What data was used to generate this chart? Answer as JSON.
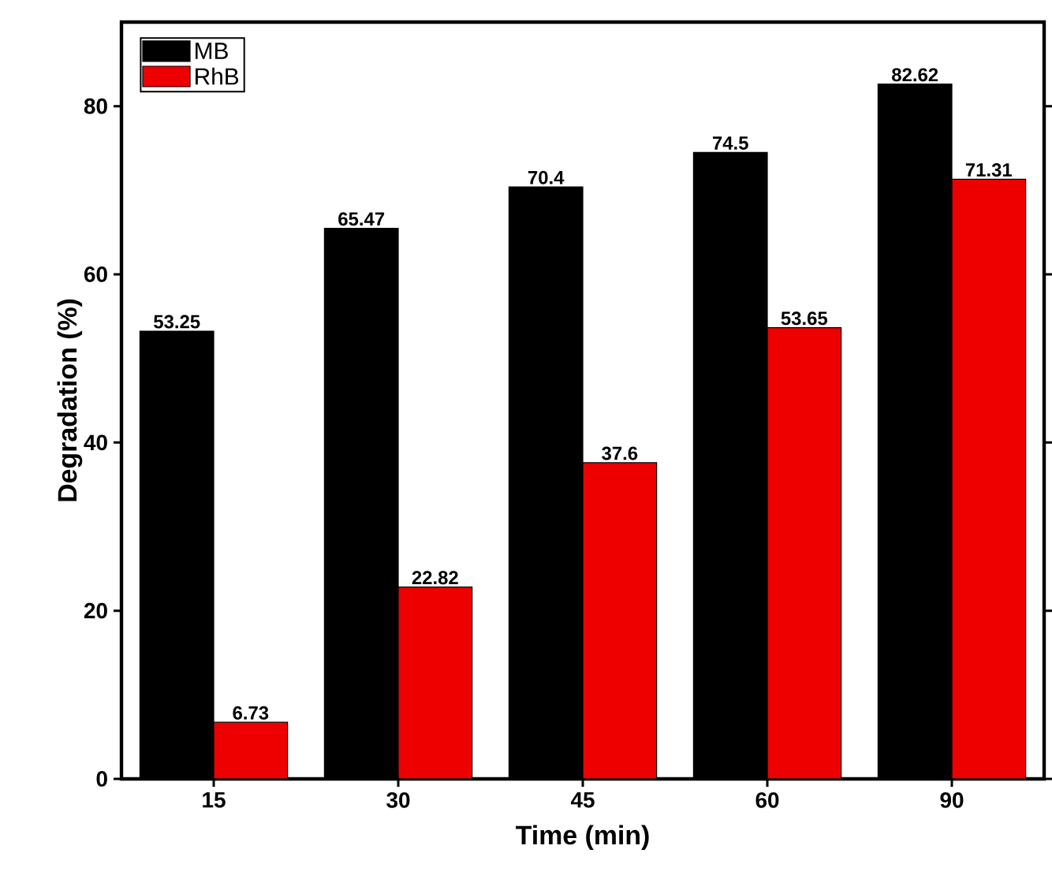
{
  "chart_data": {
    "type": "bar",
    "xlabel": "Time (min)",
    "ylabel": "Degradation (%)",
    "categories": [
      "15",
      "30",
      "45",
      "60",
      "90"
    ],
    "series": [
      {
        "name": "MB",
        "color": "#000000",
        "values": [
          53.25,
          65.47,
          70.4,
          74.5,
          82.62
        ]
      },
      {
        "name": "RhB",
        "color": "#ee0000",
        "values": [
          6.73,
          22.82,
          37.6,
          53.65,
          71.31
        ]
      }
    ],
    "ylim": [
      0,
      90
    ],
    "yticks": [
      0,
      20,
      40,
      60,
      80
    ],
    "legend": "top left",
    "data_labels": true,
    "grid": false
  }
}
